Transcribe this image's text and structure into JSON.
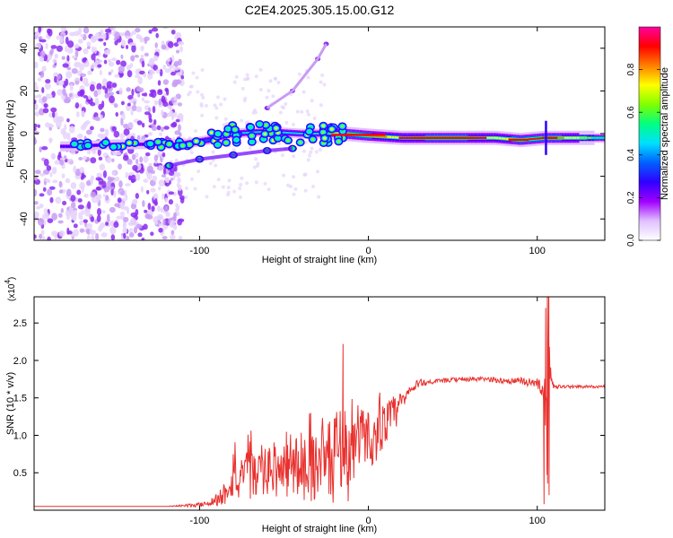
{
  "title": "C2E4.2025.305.15.00.G12",
  "chart_data": [
    {
      "type": "heatmap",
      "panel": "top",
      "xlabel": "Height of straight line (km)",
      "ylabel": "Frequency (Hz)",
      "xlim": [
        -198,
        140
      ],
      "ylim": [
        -50,
        50
      ],
      "xticks": [
        -100,
        0,
        100
      ],
      "xtick_labels": [
        "-100",
        "0",
        "100"
      ],
      "yticks": [
        -40,
        -20,
        0,
        20,
        40
      ],
      "ytick_labels": [
        "-40",
        "-20",
        "0",
        "20",
        "40"
      ],
      "colorbar": {
        "label": "Normalized spectral amplitude",
        "range": [
          0,
          1
        ],
        "ticks": [
          0.0,
          0.2,
          0.4,
          0.6,
          0.8
        ],
        "tick_labels": [
          "0.0",
          "0.2",
          "0.4",
          "0.6",
          "0.8"
        ],
        "colors": [
          "#ffffff",
          "#e0c0ff",
          "#a000ff",
          "#3000ff",
          "#0060ff",
          "#00e0ff",
          "#00ff80",
          "#80ff00",
          "#ffff00",
          "#ff8000",
          "#ff0000",
          "#ff00a0"
        ]
      },
      "main_band": [
        {
          "x": -175,
          "f": -6,
          "a": 0.25
        },
        {
          "x": -150,
          "f": -5,
          "a": 0.3
        },
        {
          "x": -130,
          "f": -5,
          "a": 0.3
        },
        {
          "x": -110,
          "f": -5,
          "a": 0.35
        },
        {
          "x": -95,
          "f": -3,
          "a": 0.4
        },
        {
          "x": -80,
          "f": 0,
          "a": 0.45
        },
        {
          "x": -60,
          "f": 1,
          "a": 0.45
        },
        {
          "x": -40,
          "f": 0,
          "a": 0.45
        },
        {
          "x": -25,
          "f": 0,
          "a": 0.5
        },
        {
          "x": -15,
          "f": 0,
          "a": 0.85
        },
        {
          "x": 0,
          "f": -1,
          "a": 0.8
        },
        {
          "x": 20,
          "f": -2,
          "a": 0.75
        },
        {
          "x": 50,
          "f": -2,
          "a": 0.85
        },
        {
          "x": 75,
          "f": -2,
          "a": 0.7
        },
        {
          "x": 90,
          "f": -3,
          "a": 0.85
        },
        {
          "x": 105,
          "f": -2,
          "a": 0.9
        },
        {
          "x": 140,
          "f": -2,
          "a": 0.5
        }
      ],
      "secondary_band": [
        {
          "x": -118,
          "f": -15
        },
        {
          "x": -100,
          "f": -12
        },
        {
          "x": -80,
          "f": -10
        },
        {
          "x": -60,
          "f": -8
        },
        {
          "x": -45,
          "f": -7
        }
      ],
      "chirp": [
        {
          "x": -60,
          "f": 12
        },
        {
          "x": -45,
          "f": 20
        },
        {
          "x": -30,
          "f": 35
        },
        {
          "x": -25,
          "f": 42
        }
      ],
      "noise_region_x": [
        -198,
        -110
      ]
    },
    {
      "type": "line",
      "panel": "bottom",
      "xlabel": "Height of straight line (km)",
      "ylabel": "SNR (10 * v/v)",
      "scale_label": "(x10",
      "scale_exponent": "4",
      "xlim": [
        -198,
        140
      ],
      "ylim": [
        0,
        2.85
      ],
      "xticks": [
        -100,
        0,
        100
      ],
      "xtick_labels": [
        "-100",
        "0",
        "100"
      ],
      "yticks": [
        0.5,
        1.0,
        1.5,
        2.0,
        2.5
      ],
      "ytick_labels": [
        "0.5",
        "1.0",
        "1.5",
        "2.0",
        "2.5"
      ],
      "series": [
        {
          "name": "SNR",
          "color": "#e8312e",
          "x": [
            -198,
            -120,
            -100,
            -92,
            -86,
            -80,
            -76,
            -70,
            -64,
            -58,
            -52,
            -46,
            -40,
            -34,
            -28,
            -24,
            -20,
            -17,
            -14,
            -11,
            -8,
            -4,
            0,
            4,
            8,
            12,
            16,
            20,
            25,
            30,
            40,
            50,
            60,
            70,
            80,
            90,
            100,
            104,
            106,
            107,
            108,
            110,
            115,
            125,
            140
          ],
          "y": [
            0.05,
            0.05,
            0.07,
            0.12,
            0.2,
            0.5,
            0.35,
            0.5,
            0.45,
            0.55,
            0.5,
            0.55,
            0.6,
            0.55,
            0.7,
            0.6,
            0.7,
            0.9,
            0.8,
            0.7,
            0.9,
            1.0,
            1.0,
            0.9,
            1.1,
            1.2,
            1.3,
            1.45,
            1.6,
            1.7,
            1.72,
            1.74,
            1.75,
            1.75,
            1.73,
            1.72,
            1.7,
            1.6,
            1.0,
            2.0,
            1.7,
            1.65,
            1.65,
            1.65,
            1.65
          ],
          "noise": [
            0,
            0,
            0.03,
            0.06,
            0.15,
            0.35,
            0.3,
            0.35,
            0.3,
            0.35,
            0.35,
            0.4,
            0.45,
            0.45,
            0.5,
            0.55,
            0.6,
            0.6,
            0.5,
            0.45,
            0.45,
            0.4,
            0.35,
            0.35,
            0.3,
            0.3,
            0.25,
            0.15,
            0.08,
            0.05,
            0.03,
            0.03,
            0.03,
            0.03,
            0.04,
            0.05,
            0.06,
            0.15,
            0.9,
            0.9,
            0.1,
            0.03,
            0.02,
            0.02,
            0.02
          ],
          "spikes": [
            {
              "x": -15,
              "y": 2.22
            },
            {
              "x": -12,
              "y": 0.12
            },
            {
              "x": 104,
              "y": 0.08
            },
            {
              "x": 105,
              "y": 2.7
            },
            {
              "x": 106,
              "y": 2.85
            },
            {
              "x": 107,
              "y": 0.2
            }
          ]
        }
      ]
    }
  ]
}
